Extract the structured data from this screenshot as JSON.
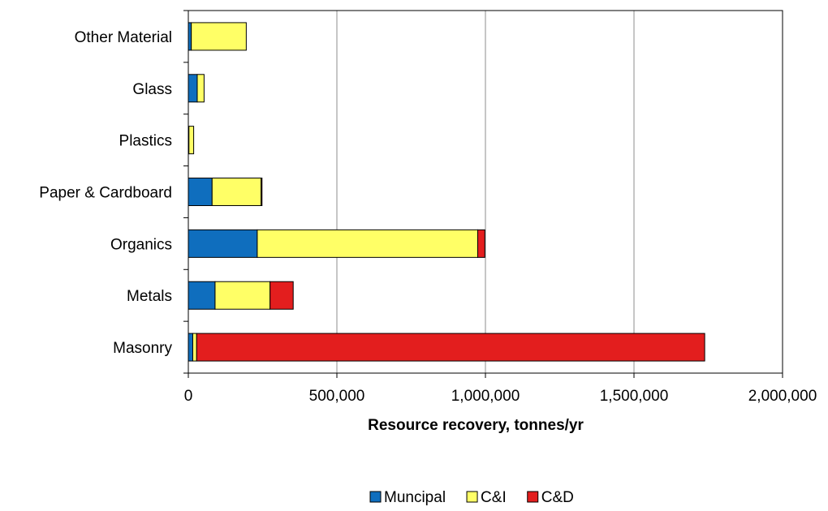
{
  "chart_data": {
    "type": "bar",
    "orientation": "horizontal",
    "stacked": true,
    "title": "",
    "xlabel": "Resource recovery, tonnes/yr",
    "ylabel": "",
    "categories": [
      "Other Material",
      "Glass",
      "Plastics",
      "Paper & Cardboard",
      "Organics",
      "Metals",
      "Masonry"
    ],
    "series": [
      {
        "name": "Muncipal",
        "color": "#0f6ebe",
        "values": [
          10000,
          30000,
          2000,
          80000,
          232000,
          90000,
          15000
        ]
      },
      {
        "name": "C&I",
        "color": "#ffff66",
        "values": [
          185000,
          23000,
          16000,
          165000,
          742000,
          185000,
          13000
        ]
      },
      {
        "name": "C&D",
        "color": "#e31e1e",
        "values": [
          0,
          0,
          0,
          3000,
          24000,
          78000,
          1710000
        ]
      }
    ],
    "xlim": [
      0,
      2000000
    ],
    "xticks": [
      0,
      500000,
      1000000,
      1500000,
      2000000
    ],
    "xtick_labels": [
      "0",
      "500,000",
      "1,000,000",
      "1,500,000",
      "2,000,000"
    ],
    "grid": "vertical",
    "legend_position": "bottom-center"
  }
}
